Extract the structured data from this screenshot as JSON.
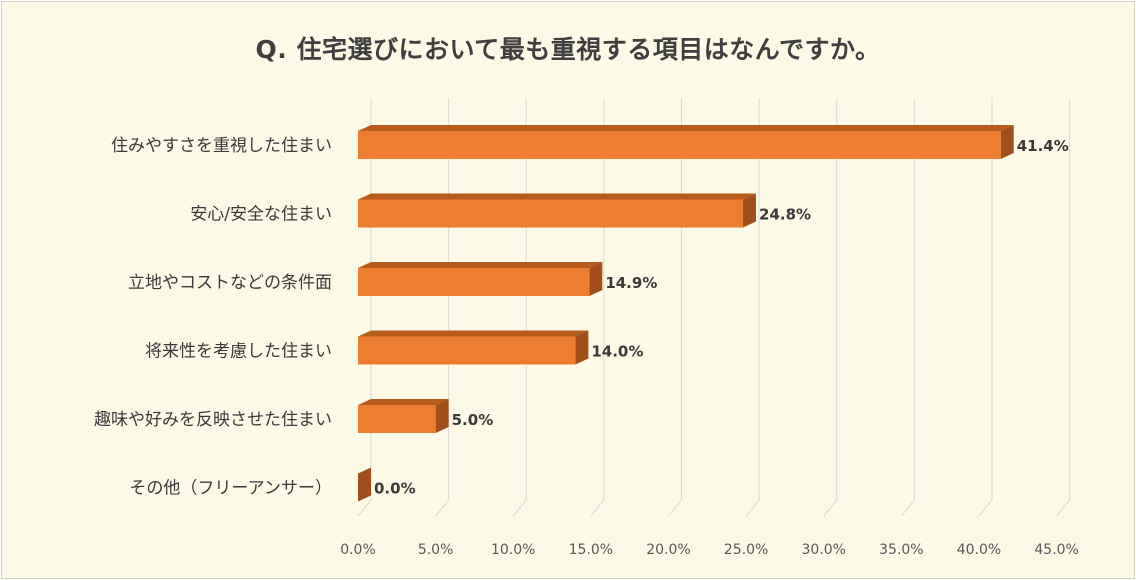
{
  "chart_data": {
    "type": "bar",
    "orientation": "horizontal",
    "title": "Q. 住宅選びにおいて最も重視する項目はなんですか。",
    "categories": [
      "住みやすさを重視した住まい",
      "安心/安全な住まい",
      "立地やコストなどの条件面",
      "将来性を考慮した住まい",
      "趣味や好みを反映させた住まい",
      "その他（フリーアンサー）"
    ],
    "values": [
      41.4,
      24.8,
      14.9,
      14.0,
      5.0,
      0.0
    ],
    "value_labels": [
      "41.4%",
      "24.8%",
      "14.9%",
      "14.0%",
      "5.0%",
      "0.0%"
    ],
    "x_ticks": [
      "0.0%",
      "5.0%",
      "10.0%",
      "15.0%",
      "20.0%",
      "25.0%",
      "30.0%",
      "35.0%",
      "40.0%",
      "45.0%"
    ],
    "xlim": [
      0,
      45
    ],
    "xlabel": "",
    "ylabel": "",
    "grid": true,
    "style": "3d"
  },
  "colors": {
    "bar_front": "#ed7d31",
    "bar_top": "#b85c1e",
    "bar_side": "#a1501b",
    "background": "#fcf9e6",
    "gridline": "#d9d9d9"
  }
}
